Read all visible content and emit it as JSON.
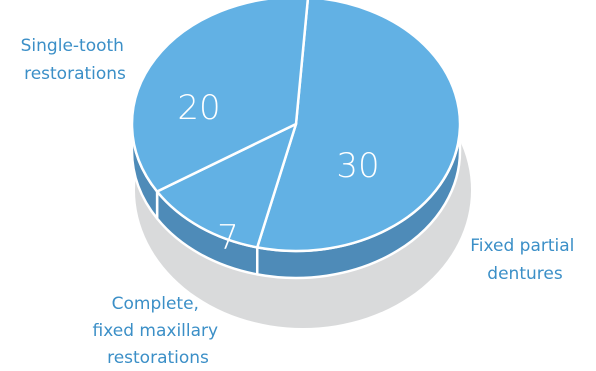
{
  "chart_data": {
    "type": "pie",
    "style": "3d",
    "categories": [
      "Fixed partial dentures",
      "Complete, fixed maxillary restorations",
      "Single-tooth restorations"
    ],
    "values": [
      30,
      7,
      20
    ],
    "data_labels": [
      "30",
      "7",
      "20"
    ],
    "colors": {
      "slice_fill": "#62b1e4",
      "slice_side": "#4e8bb8",
      "slice_border": "#ffffff",
      "label_text": "#3b8fc7",
      "shadow": "#d9dadb"
    }
  }
}
